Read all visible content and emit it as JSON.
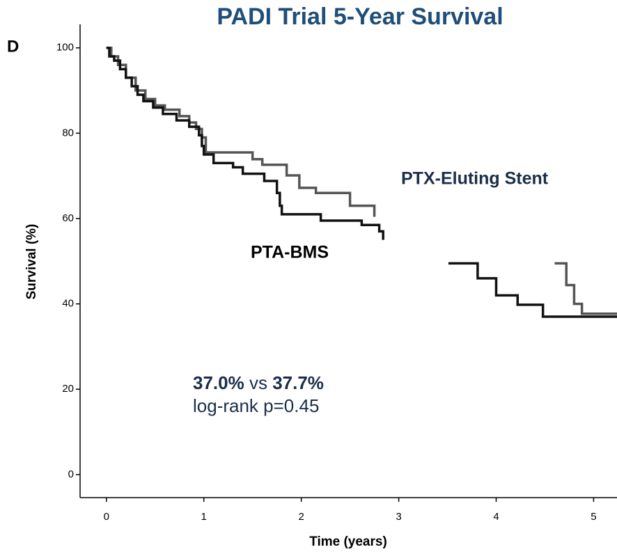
{
  "chart_data": {
    "type": "step",
    "title": "PADI Trial 5-Year Survival",
    "panel_label": "D",
    "xlabel": "Time (years)",
    "ylabel": "Survival (%)",
    "xlim": [
      -0.27,
      5.24
    ],
    "ylim": [
      -5.4,
      105.5
    ],
    "xticks": [
      0,
      1,
      2,
      3,
      4,
      5
    ],
    "yticks": [
      0,
      20,
      40,
      60,
      80,
      100
    ],
    "series": [
      {
        "name": "PTX-Eluting Stent",
        "color": "#555555",
        "x": [
          0,
          0.05,
          0.12,
          0.2,
          0.3,
          0.4,
          0.5,
          0.6,
          0.75,
          0.85,
          0.92,
          0.98,
          1.02,
          1.5,
          1.6,
          1.85,
          1.98,
          2.15,
          2.5,
          2.75,
          2.85,
          4.6,
          4.72,
          4.8,
          4.88,
          5.24
        ],
        "values": [
          100,
          98,
          96,
          93,
          90,
          88,
          86.5,
          85.5,
          84,
          82.5,
          81,
          79,
          75.5,
          73.9,
          72.6,
          70.1,
          67.2,
          66,
          63,
          60.4,
          null,
          49.5,
          44.4,
          40,
          37.7,
          37.7
        ]
      },
      {
        "name": "PTA-BMS",
        "color": "#111111",
        "x": [
          0,
          0.03,
          0.08,
          0.14,
          0.2,
          0.26,
          0.32,
          0.38,
          0.48,
          0.58,
          0.72,
          0.85,
          0.95,
          0.98,
          1.0,
          1.1,
          1.3,
          1.4,
          1.62,
          1.75,
          1.78,
          1.8,
          2.2,
          2.62,
          2.8,
          2.84,
          2.85,
          3.51,
          3.81,
          4.0,
          4.22,
          4.48,
          5.24
        ],
        "values": [
          100,
          98,
          97,
          95,
          93,
          91,
          89,
          87.5,
          86,
          84.5,
          83,
          81.5,
          79.5,
          77,
          75,
          73,
          72,
          70.5,
          68.8,
          66,
          63,
          61,
          59.5,
          58.5,
          57,
          55,
          null,
          49.5,
          46,
          42,
          39.8,
          37,
          37
        ]
      }
    ],
    "annotations": {
      "rate_a": "37.0%",
      "vs": "vs",
      "rate_b": "37.7%",
      "test": "log-rank p=0.45"
    }
  }
}
